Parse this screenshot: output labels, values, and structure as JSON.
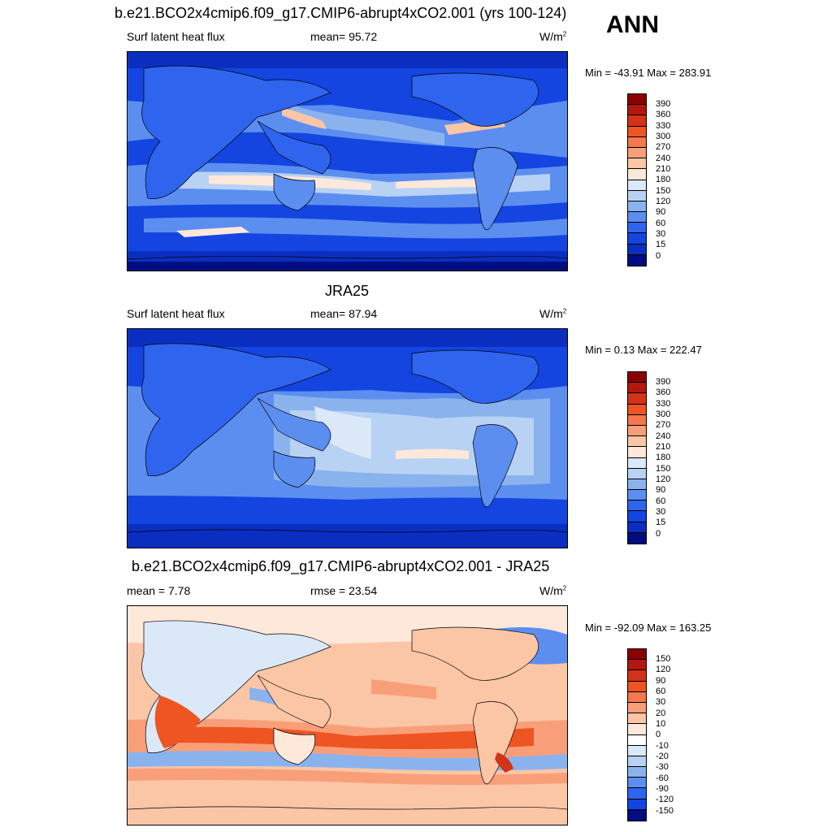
{
  "season": "ANN",
  "panels": [
    {
      "title": "b.e21.BCO2x4cmip6.f09_g17.CMIP6-abrupt4xCO2.001 (yrs 100-124)",
      "left_label": "Surf latent heat flux",
      "center_label": "mean=  95.72",
      "units": "W/m",
      "units_sup": "2",
      "minmax": "Min = -43.91 Max = 283.91",
      "colorbar_labels": [
        "390",
        "360",
        "330",
        "300",
        "270",
        "240",
        "210",
        "180",
        "150",
        "120",
        "90",
        "60",
        "30",
        "15",
        "0"
      ]
    },
    {
      "title": "JRA25",
      "left_label": "Surf latent heat flux",
      "center_label": "mean=  87.94",
      "units": "W/m",
      "units_sup": "2",
      "minmax": "Min =   0.13 Max = 222.47",
      "colorbar_labels": [
        "390",
        "360",
        "330",
        "300",
        "270",
        "240",
        "210",
        "180",
        "150",
        "120",
        "90",
        "60",
        "30",
        "15",
        "0"
      ]
    },
    {
      "title": "b.e21.BCO2x4cmip6.f09_g17.CMIP6-abrupt4xCO2.001 - JRA25",
      "left_label": "mean =   7.78",
      "center_label": "rmse =  23.54",
      "units": "W/m",
      "units_sup": "2",
      "minmax": "Min = -92.09 Max = 163.25",
      "colorbar_labels": [
        "150",
        "120",
        "90",
        "60",
        "30",
        "20",
        "10",
        "0",
        "-10",
        "-20",
        "-30",
        "-60",
        "-90",
        "-120",
        "-150"
      ]
    }
  ],
  "colors": {
    "sequential": [
      "#8b0000",
      "#b2180e",
      "#d33318",
      "#ee5522",
      "#f4774e",
      "#f89f79",
      "#fbc6a6",
      "#fde8da",
      "#dbe8f8",
      "#b8d2f4",
      "#8ab3ee",
      "#5c8ef0",
      "#2f64ee",
      "#1445e0",
      "#0a2fc0",
      "#000d80"
    ],
    "diverging": [
      "#8b0000",
      "#b2180e",
      "#d33318",
      "#ee5522",
      "#f4774e",
      "#f89f79",
      "#fbc6a6",
      "#fde8da",
      "#ffffff",
      "#dbe8f8",
      "#b8d2f4",
      "#8ab3ee",
      "#5c8ef0",
      "#2f64ee",
      "#1445e0",
      "#000d80"
    ]
  }
}
